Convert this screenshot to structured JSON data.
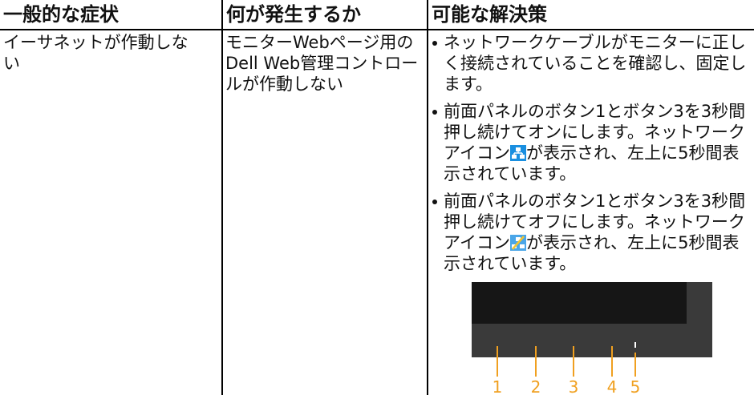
{
  "table": {
    "header": [
      "一般的な症状",
      "何が発生するか",
      "可能な解決策"
    ],
    "rows": [
      {
        "symptom": "イーサネットが作動しない",
        "occurs": "モニターWebページ用のDell Web管理コントロールが作動しない",
        "solutions": [
          {
            "text_before": "ネットワークケーブルがモニターに正しく接続されていることを確認し、固定します。"
          },
          {
            "text_before": "前面パネルのボタン1とボタン3を3秒間押し続けてオンにします。ネットワークアイコン",
            "text_after": "が表示され、左上に5秒間表示されています。"
          },
          {
            "text_before": "前面パネルのボタン1とボタン3を3秒間押し続けてオフにします。ネットワークアイコン",
            "text_after": "が表示され、左上に5秒間表示されています。"
          }
        ]
      }
    ]
  },
  "figure": {
    "button_labels": [
      "1",
      "2",
      "3",
      "4",
      "5"
    ]
  }
}
